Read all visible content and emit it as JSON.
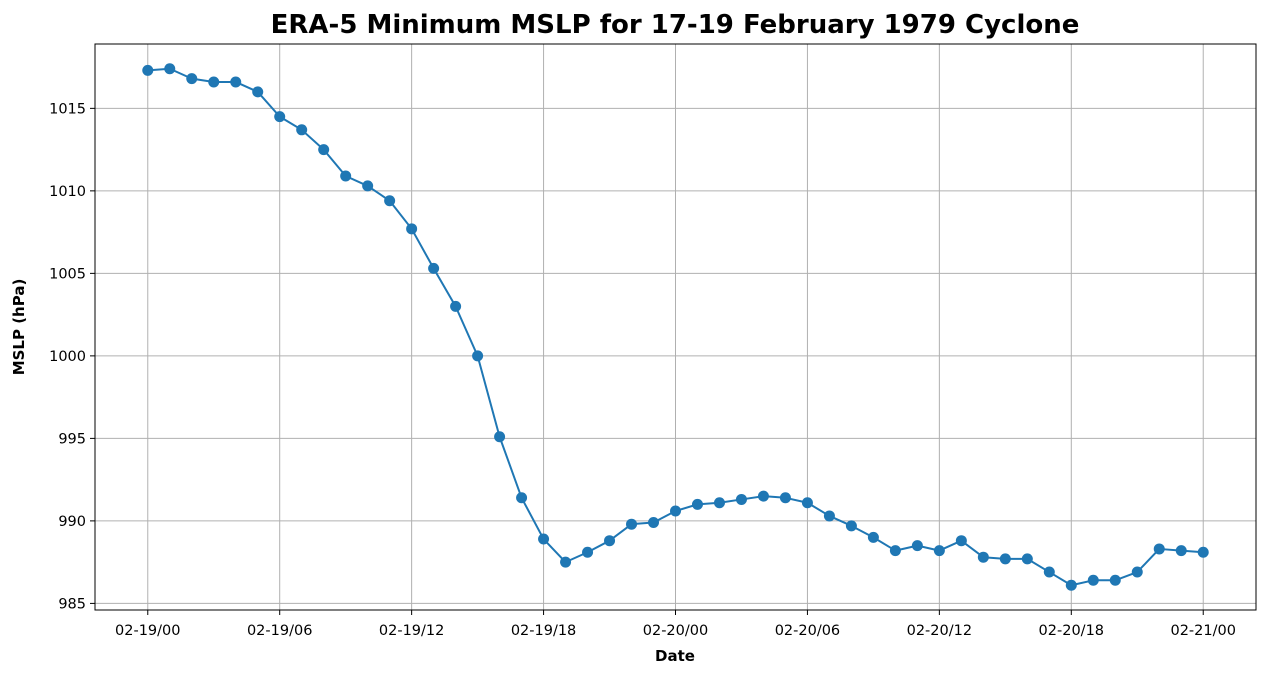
{
  "chart_data": {
    "type": "line",
    "title": "ERA-5 Minimum MSLP for 17-19 February 1979 Cyclone",
    "xlabel": "Date",
    "ylabel": "MSLP (hPa)",
    "x_tick_labels": [
      "02-19/00",
      "02-19/06",
      "02-19/12",
      "02-19/18",
      "02-20/00",
      "02-20/06",
      "02-20/12",
      "02-20/18",
      "02-21/00"
    ],
    "y_ticks": [
      985,
      990,
      995,
      1000,
      1005,
      1010,
      1015
    ],
    "xlim_hours": [
      -2.4,
      50.4
    ],
    "ylim": [
      984.6,
      1018.9
    ],
    "grid": true,
    "color": "#1f77b4",
    "marker": "circle",
    "series": [
      {
        "x_hours": [
          0,
          1,
          2,
          3,
          4,
          5,
          6,
          7,
          8,
          9,
          10,
          11,
          12,
          13,
          14,
          15,
          16,
          17,
          18,
          19,
          20,
          21,
          22,
          23,
          24,
          25,
          26,
          27,
          28,
          29,
          30,
          31,
          32,
          33,
          34,
          35,
          36,
          37,
          38,
          39,
          40,
          41,
          42,
          43,
          44,
          45,
          46,
          47,
          48
        ],
        "values": [
          1017.3,
          1017.4,
          1016.8,
          1016.6,
          1016.6,
          1016.0,
          1014.5,
          1013.7,
          1012.5,
          1010.9,
          1010.3,
          1009.4,
          1007.7,
          1005.3,
          1003.0,
          1000.0,
          995.1,
          991.4,
          988.9,
          987.5,
          988.1,
          988.8,
          989.8,
          989.9,
          990.6,
          991.0,
          991.1,
          991.3,
          991.5,
          991.4,
          991.1,
          990.3,
          989.7,
          989.0,
          988.2,
          988.5,
          988.2,
          988.8,
          987.8,
          987.7,
          987.7,
          986.9,
          986.1,
          986.4,
          986.4,
          986.9,
          988.3,
          988.2,
          988.1
        ]
      }
    ]
  }
}
